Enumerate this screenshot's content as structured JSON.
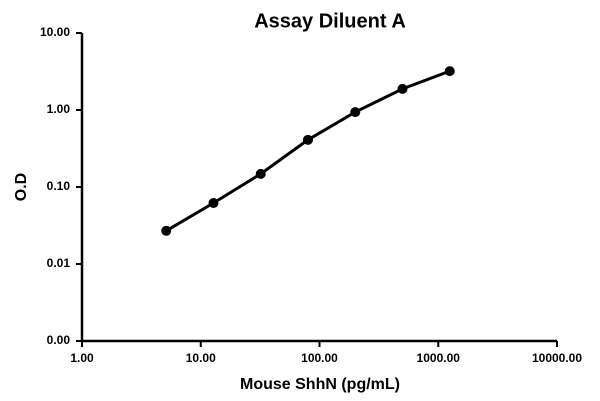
{
  "chart_data": {
    "type": "line",
    "title": "Assay Diluent A",
    "x_label": "Mouse ShhN (pg/mL)",
    "y_label": "O.D",
    "x": [
      5.12,
      12.8,
      32,
      80,
      200,
      500,
      1250
    ],
    "series": [
      {
        "color": "#000000",
        "values": [
          0.027,
          0.062,
          0.148,
          0.41,
          0.94,
          1.88,
          3.2
        ]
      }
    ],
    "x_log": true,
    "y_log": true,
    "xlim": [
      1,
      10000
    ],
    "xticks": [
      {
        "value": 1,
        "label": "1.00"
      },
      {
        "value": 10,
        "label": "10.00"
      },
      {
        "value": 100,
        "label": "100.00"
      },
      {
        "value": 1000,
        "label": "1000.00"
      },
      {
        "value": 10000,
        "label": "10000.00"
      }
    ],
    "ylim": [
      0.001,
      10
    ],
    "yticks": [
      {
        "value": 0.001,
        "label": "0.00"
      },
      {
        "value": 0.01,
        "label": "0.01"
      },
      {
        "value": 0.1,
        "label": "0.10"
      },
      {
        "value": 1,
        "label": "1.00"
      },
      {
        "value": 10,
        "label": "10.00"
      }
    ],
    "grid": false
  }
}
